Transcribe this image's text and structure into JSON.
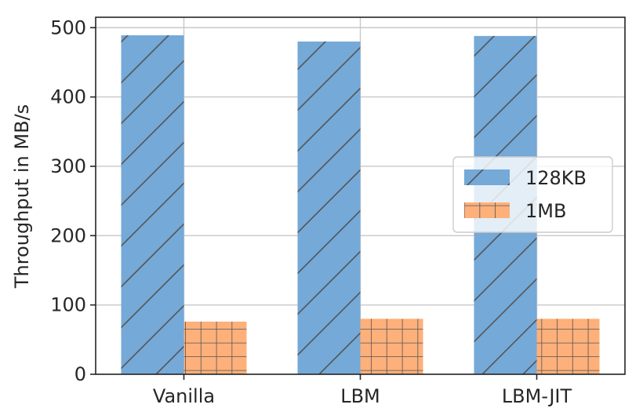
{
  "chart_data": {
    "type": "bar",
    "title": "",
    "xlabel": "",
    "ylabel": "Throughput in MB/s",
    "categories": [
      "Vanilla",
      "LBM",
      "LBM-JIT"
    ],
    "series": [
      {
        "name": "128KB",
        "values": [
          489,
          480,
          488
        ],
        "color": "#74a9d8",
        "hatch": "diagonal"
      },
      {
        "name": "1MB",
        "values": [
          76,
          80,
          80
        ],
        "color": "#fdb07a",
        "hatch": "grid"
      }
    ],
    "ylim": [
      0,
      515
    ],
    "yticks": [
      0,
      100,
      200,
      300,
      400,
      500
    ],
    "grid": true,
    "legend_position": "center-right"
  }
}
